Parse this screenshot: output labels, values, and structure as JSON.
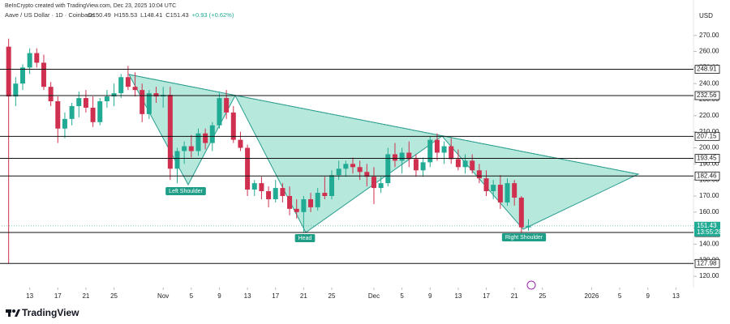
{
  "header": {
    "credit": "BeInCrypto created with TradingView.com, Dec 23, 2025 10:04 UTC",
    "symbol": "Aave / US Dollar · 1D · Coinbase",
    "ohlc": [
      "O150.49",
      "H155.53",
      "L148.41",
      "C151.43",
      "+0.93 (+0.62%)"
    ]
  },
  "currency": "USD",
  "brand": "TradingView",
  "chart_data": {
    "type": "candlestick",
    "x": [
      -3,
      -2,
      -1,
      0,
      1,
      2,
      3,
      4,
      5,
      6,
      7,
      8,
      9,
      10,
      11,
      12,
      13,
      14,
      15,
      16,
      17,
      18,
      19,
      20,
      21,
      22,
      23,
      24,
      25,
      26,
      27,
      28,
      29,
      30,
      31,
      32,
      33,
      34,
      35,
      36,
      37,
      38,
      39,
      40,
      41,
      42,
      43,
      44,
      45,
      46,
      47,
      48,
      49,
      50,
      51,
      52,
      53,
      54,
      55,
      56,
      57,
      58,
      59,
      60,
      61,
      62,
      63,
      64,
      65,
      66,
      67,
      68,
      69,
      70,
      71
    ],
    "open": [
      263,
      232,
      240,
      250,
      259,
      253,
      238,
      229,
      212,
      218,
      226,
      231,
      225,
      216,
      229,
      232,
      234,
      244,
      238,
      236,
      221,
      234,
      232,
      233,
      187,
      198,
      201,
      198,
      209,
      203,
      214,
      231,
      222,
      205,
      200,
      174,
      178,
      173,
      168,
      175,
      170,
      162,
      160,
      168,
      163,
      172,
      170,
      183,
      187,
      190,
      188,
      185,
      182,
      175,
      178,
      196,
      192,
      197,
      193,
      186,
      191,
      205,
      197,
      201,
      193,
      188,
      192,
      186,
      181,
      173,
      177,
      166,
      178,
      169,
      150.49
    ],
    "high": [
      268,
      244,
      252,
      262,
      262,
      258,
      241,
      232,
      222,
      228,
      235,
      236,
      232,
      231,
      236,
      240,
      246,
      251,
      247,
      240,
      236,
      238,
      238,
      238,
      200,
      204,
      208,
      212,
      212,
      216,
      234,
      236,
      226,
      210,
      202,
      180,
      182,
      176,
      180,
      178,
      176,
      168,
      170,
      172,
      175,
      182,
      186,
      192,
      192,
      194,
      192,
      190,
      188,
      182,
      200,
      203,
      200,
      204,
      196,
      194,
      207,
      209,
      204,
      206,
      199,
      196,
      196,
      190,
      186,
      180,
      183,
      181,
      180,
      170,
      155.53
    ],
    "low": [
      128,
      226,
      236,
      246,
      250,
      236,
      226,
      203,
      206,
      214,
      219,
      222,
      213,
      214,
      225,
      226,
      231,
      236,
      232,
      216,
      218,
      228,
      225,
      180,
      178,
      190,
      194,
      195,
      199,
      198,
      212,
      218,
      203,
      198,
      170,
      170,
      168,
      163,
      166,
      166,
      158,
      156,
      147,
      160,
      161,
      168,
      168,
      180,
      182,
      184,
      180,
      176,
      165,
      172,
      176,
      188,
      184,
      188,
      182,
      182,
      188,
      192,
      190,
      190,
      186,
      184,
      184,
      178,
      170,
      168,
      162,
      164,
      164,
      147,
      148.41
    ],
    "close": [
      232,
      240,
      250,
      259,
      253,
      238,
      229,
      212,
      218,
      226,
      231,
      225,
      216,
      229,
      232,
      234,
      244,
      238,
      236,
      221,
      234,
      232,
      233,
      187,
      198,
      201,
      198,
      209,
      203,
      214,
      231,
      222,
      205,
      200,
      174,
      178,
      173,
      168,
      175,
      170,
      162,
      160,
      168,
      163,
      172,
      170,
      183,
      187,
      190,
      188,
      185,
      182,
      175,
      178,
      196,
      192,
      197,
      193,
      186,
      191,
      205,
      197,
      201,
      193,
      188,
      192,
      186,
      181,
      173,
      177,
      166,
      178,
      169,
      150.5,
      151.43
    ],
    "up_color": "#22ab94",
    "down_color": "#d0304f",
    "xlim": [
      -4,
      94.5
    ],
    "xticks": [
      {
        "value": 0,
        "label": "13"
      },
      {
        "value": 4,
        "label": "17"
      },
      {
        "value": 8,
        "label": "21"
      },
      {
        "value": 12,
        "label": "25"
      },
      {
        "value": 19,
        "label": "Nov"
      },
      {
        "value": 23,
        "label": "5"
      },
      {
        "value": 27,
        "label": "9"
      },
      {
        "value": 31,
        "label": "13"
      },
      {
        "value": 35,
        "label": "17"
      },
      {
        "value": 39,
        "label": "21"
      },
      {
        "value": 43,
        "label": "25"
      },
      {
        "value": 49,
        "label": "Dec"
      },
      {
        "value": 53,
        "label": "5"
      },
      {
        "value": 57,
        "label": "9"
      },
      {
        "value": 61,
        "label": "13"
      },
      {
        "value": 65,
        "label": "17"
      },
      {
        "value": 69,
        "label": "21"
      },
      {
        "value": 73,
        "label": "25"
      },
      {
        "value": 80,
        "label": "2026"
      },
      {
        "value": 84,
        "label": "5"
      },
      {
        "value": 88,
        "label": "9"
      },
      {
        "value": 92,
        "label": "13"
      }
    ],
    "ylim": [
      113,
      285
    ],
    "yticks": [
      {
        "value": 120,
        "label": "120.00"
      },
      {
        "value": 130,
        "label": "130.00"
      },
      {
        "value": 140,
        "label": "140.00"
      },
      {
        "value": 150,
        "label": "150.00"
      },
      {
        "value": 160,
        "label": "160.00"
      },
      {
        "value": 170,
        "label": "170.00"
      },
      {
        "value": 180,
        "label": "180.00"
      },
      {
        "value": 190,
        "label": "190.00"
      },
      {
        "value": 200,
        "label": "200.00"
      },
      {
        "value": 210,
        "label": "210.00"
      },
      {
        "value": 220,
        "label": "220.00"
      },
      {
        "value": 230,
        "label": "230.00"
      },
      {
        "value": 240,
        "label": "240.00"
      },
      {
        "value": 250,
        "label": "250.00"
      },
      {
        "value": 260,
        "label": "260.00"
      },
      {
        "value": 270,
        "label": "270.00"
      }
    ],
    "levels": [
      248.91,
      232.56,
      207.15,
      193.45,
      182.46,
      147.27,
      127.98
    ],
    "last_price": 151.43,
    "countdown": "13:55:28",
    "annotations": [
      "Left Shoulder",
      "Head",
      "Right Shoulder"
    ]
  }
}
